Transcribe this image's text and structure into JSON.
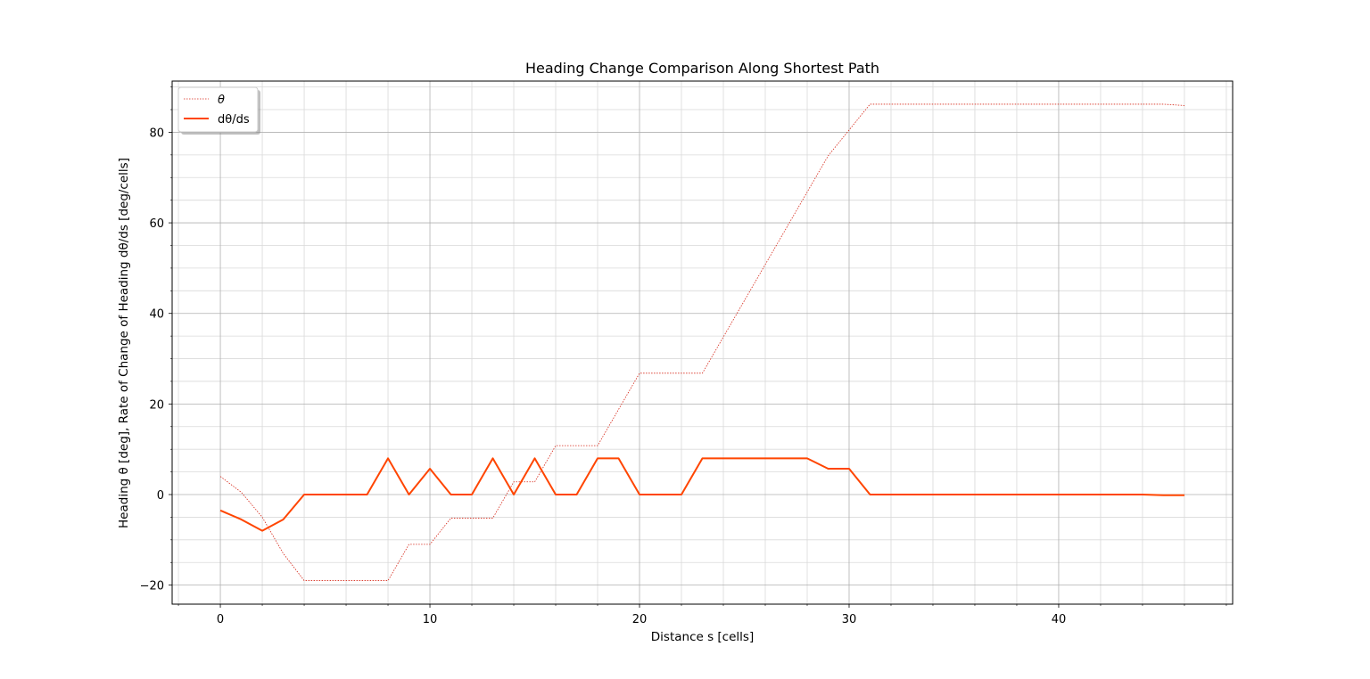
{
  "chart_data": {
    "type": "line",
    "title": "Heading Change Comparison Along Shortest Path",
    "xlabel": "Distance s [cells]",
    "ylabel": "Heading θ [deg],    Rate of Change of Heading dθ/ds [deg/cells]",
    "xlim": [
      -2.3,
      48.3
    ],
    "ylim": [
      -24.2,
      91.3
    ],
    "x_ticks": [
      0,
      10,
      20,
      30,
      40
    ],
    "y_ticks": [
      -20,
      0,
      20,
      40,
      60,
      80
    ],
    "x_tick_labels": [
      "0",
      "10",
      "20",
      "30",
      "40"
    ],
    "y_tick_labels": [
      "−20",
      "0",
      "20",
      "40",
      "60",
      "80"
    ],
    "x_minor_step": 2,
    "y_minor_step": 5,
    "grid": true,
    "legend_position": "top-left",
    "series": [
      {
        "name": "θ",
        "style": "dotted",
        "color": "#d62718",
        "x": [
          0,
          1,
          2,
          3,
          4,
          5,
          6,
          7,
          8,
          9,
          10,
          11,
          12,
          13,
          14,
          15,
          16,
          17,
          18,
          19,
          20,
          21,
          22,
          23,
          24,
          25,
          26,
          27,
          28,
          29,
          30,
          31,
          32,
          33,
          34,
          35,
          36,
          37,
          38,
          39,
          40,
          41,
          42,
          43,
          44,
          45,
          46
        ],
        "y": [
          4,
          0.5,
          -5,
          -13,
          -19,
          -19,
          -19,
          -19,
          -19,
          -11,
          -11,
          -5.2,
          -5.2,
          -5.2,
          2.8,
          2.8,
          10.8,
          10.8,
          10.8,
          18.8,
          26.8,
          26.8,
          26.8,
          26.8,
          34.8,
          42.8,
          50.8,
          58.8,
          66.8,
          74.8,
          80.5,
          86.2,
          86.2,
          86.2,
          86.2,
          86.2,
          86.2,
          86.2,
          86.2,
          86.2,
          86.2,
          86.2,
          86.2,
          86.2,
          86.2,
          86.2,
          85.9
        ]
      },
      {
        "name": "dθ/ds",
        "style": "solid",
        "color": "#ff4500",
        "x": [
          0,
          1,
          2,
          3,
          4,
          5,
          6,
          7,
          8,
          9,
          10,
          11,
          12,
          13,
          14,
          15,
          16,
          17,
          18,
          19,
          20,
          21,
          22,
          23,
          24,
          25,
          26,
          27,
          28,
          29,
          30,
          31,
          32,
          33,
          34,
          35,
          36,
          37,
          38,
          39,
          40,
          41,
          42,
          43,
          44,
          45,
          46
        ],
        "y": [
          -3.5,
          -5.5,
          -8,
          -5.5,
          0,
          0,
          0,
          0,
          8,
          0,
          5.7,
          0,
          0,
          8,
          0,
          8,
          0,
          0,
          8,
          8,
          0,
          0,
          0,
          8,
          8,
          8,
          8,
          8,
          8,
          5.7,
          5.7,
          0,
          0,
          0,
          0,
          0,
          0,
          0,
          0,
          0,
          0,
          0,
          0,
          0,
          0,
          -0.15,
          -0.15
        ]
      }
    ]
  }
}
